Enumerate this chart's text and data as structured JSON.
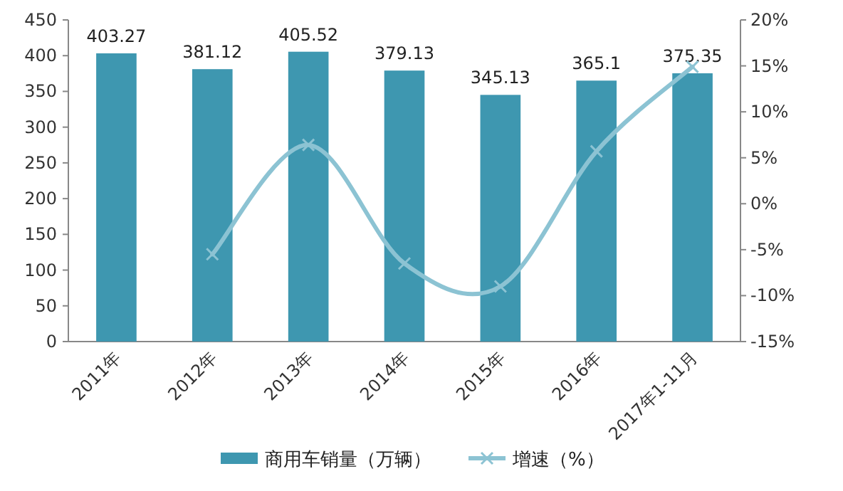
{
  "chart_data": {
    "type": "bar",
    "categories": [
      "2011年",
      "2012年",
      "2013年",
      "2014年",
      "2015年",
      "2016年",
      "2017年1-11月"
    ],
    "series": [
      {
        "name": "商用车销量（万辆）",
        "color": "#3e97b0",
        "values": [
          403.27,
          381.12,
          405.52,
          379.13,
          345.13,
          365.1,
          375.35
        ],
        "value_labels": [
          "403.27",
          "381.12",
          "405.52",
          "379.13",
          "345.13",
          "365.1",
          "375.35"
        ]
      },
      {
        "name": "增速（%）",
        "type": "line",
        "axis": "y2",
        "color": "#8cc3d3",
        "marker": "cross",
        "values": [
          null,
          -5.5,
          6.4,
          -6.5,
          -9.0,
          5.7,
          14.9
        ]
      }
    ],
    "ylim": [
      0,
      450
    ],
    "yticks": [
      0,
      50,
      100,
      150,
      200,
      250,
      300,
      350,
      400,
      450
    ],
    "y2lim": [
      -15,
      20
    ],
    "y2ticks": [
      {
        "value": -15,
        "label": "-15%"
      },
      {
        "value": -10,
        "label": "-10%"
      },
      {
        "value": -5,
        "label": "-5%"
      },
      {
        "value": 0,
        "label": "0%"
      },
      {
        "value": 5,
        "label": "5%"
      },
      {
        "value": 10,
        "label": "10%"
      },
      {
        "value": 15,
        "label": "15%"
      },
      {
        "value": 20,
        "label": "20%"
      }
    ],
    "legend": "bottom",
    "grid": false
  }
}
